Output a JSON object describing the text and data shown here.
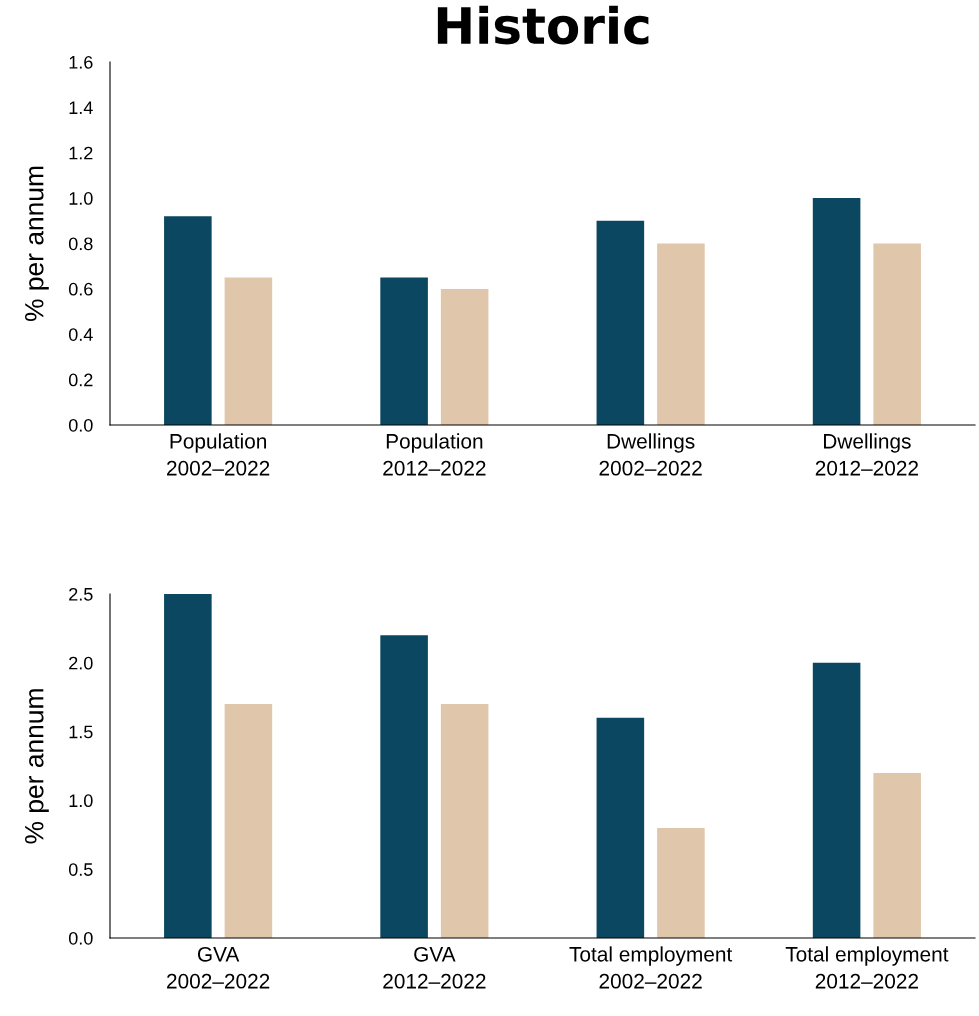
{
  "chart_data": [
    {
      "type": "bar",
      "title": "Historic",
      "ylabel": "% per annum",
      "categories": [
        "Population\n2002–2022",
        "Population\n2012–2022",
        "Dwellings\n2002–2022",
        "Dwellings\n2012–2022"
      ],
      "series": [
        {
          "color": "#0b4760",
          "values": [
            0.92,
            0.65,
            0.9,
            1.0
          ]
        },
        {
          "color": "#e0c7ab",
          "values": [
            0.65,
            0.6,
            0.8,
            0.8
          ]
        }
      ],
      "ylim": [
        0,
        1.6
      ],
      "yticks": [
        {
          "value": 0,
          "label": "0.0"
        },
        {
          "value": 0.2,
          "label": "0.2"
        },
        {
          "value": 0.4,
          "label": "0.4"
        },
        {
          "value": 0.6,
          "label": "0.6"
        },
        {
          "value": 0.8,
          "label": "0.8"
        },
        {
          "value": 1.0,
          "label": "1.0"
        },
        {
          "value": 1.2,
          "label": "1.2"
        },
        {
          "value": 1.4,
          "label": "1.4"
        },
        {
          "value": 1.6,
          "label": "1.6"
        }
      ],
      "grid": false
    },
    {
      "type": "bar",
      "ylabel": "% per annum",
      "categories": [
        "GVA\n2002–2022",
        "GVA\n2012–2022",
        "Total employment\n2002–2022",
        "Total employment\n2012–2022"
      ],
      "series": [
        {
          "color": "#0b4760",
          "values": [
            2.5,
            2.2,
            1.6,
            2.0
          ]
        },
        {
          "color": "#e0c7ab",
          "values": [
            1.7,
            1.7,
            0.8,
            1.2
          ]
        }
      ],
      "ylim": [
        0,
        2.5
      ],
      "yticks": [
        {
          "value": 0,
          "label": "0.0"
        },
        {
          "value": 0.5,
          "label": "0.5"
        },
        {
          "value": 1.0,
          "label": "1.0"
        },
        {
          "value": 1.5,
          "label": "1.5"
        },
        {
          "value": 2.0,
          "label": "2.0"
        },
        {
          "value": 2.5,
          "label": "2.5"
        }
      ],
      "grid": false
    }
  ]
}
